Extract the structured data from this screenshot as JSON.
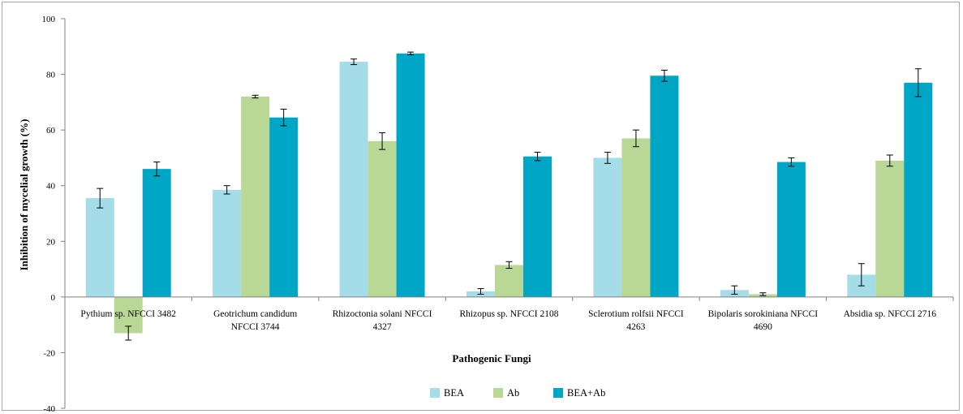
{
  "chart_data": {
    "type": "bar",
    "xlabel": "Pathogenic Fungi",
    "ylabel": "Inhibition of mycelial growth (%)",
    "ylim": [
      -40,
      100
    ],
    "yticks": [
      -40,
      -20,
      0,
      20,
      40,
      60,
      80,
      100
    ],
    "categories": [
      [
        "Pythium sp. NFCCI 3482"
      ],
      [
        "Geotrichum candidum",
        "NFCCI 3744"
      ],
      [
        "Rhizoctonia solani NFCCI",
        "4327"
      ],
      [
        "Rhizopus sp. NFCCI 2108"
      ],
      [
        "Sclerotium rolfsii NFCCI",
        "4263"
      ],
      [
        "Bipolaris sorokiniana NFCCI",
        "4690"
      ],
      [
        "Absidia sp. NFCCI 2716"
      ]
    ],
    "series": [
      {
        "name": "BEA",
        "color": "#a4dce8",
        "values": [
          35.5,
          38.5,
          84.5,
          2,
          50,
          2.5,
          8
        ],
        "errors": [
          3.5,
          1.5,
          1,
          1,
          2,
          1.5,
          4
        ]
      },
      {
        "name": "Ab",
        "color": "#b9d896",
        "values": [
          -13,
          72,
          56,
          11.5,
          57,
          1,
          49
        ],
        "errors": [
          2.5,
          0.5,
          3,
          1.2,
          3,
          0.5,
          2
        ]
      },
      {
        "name": "BEA+Ab",
        "color": "#00a6c6",
        "values": [
          46,
          64.5,
          87.5,
          50.5,
          79.5,
          48.5,
          77
        ],
        "errors": [
          2.5,
          3,
          0.5,
          1.5,
          2,
          1.5,
          5
        ]
      }
    ],
    "grid": false,
    "legend_position": "bottom"
  }
}
